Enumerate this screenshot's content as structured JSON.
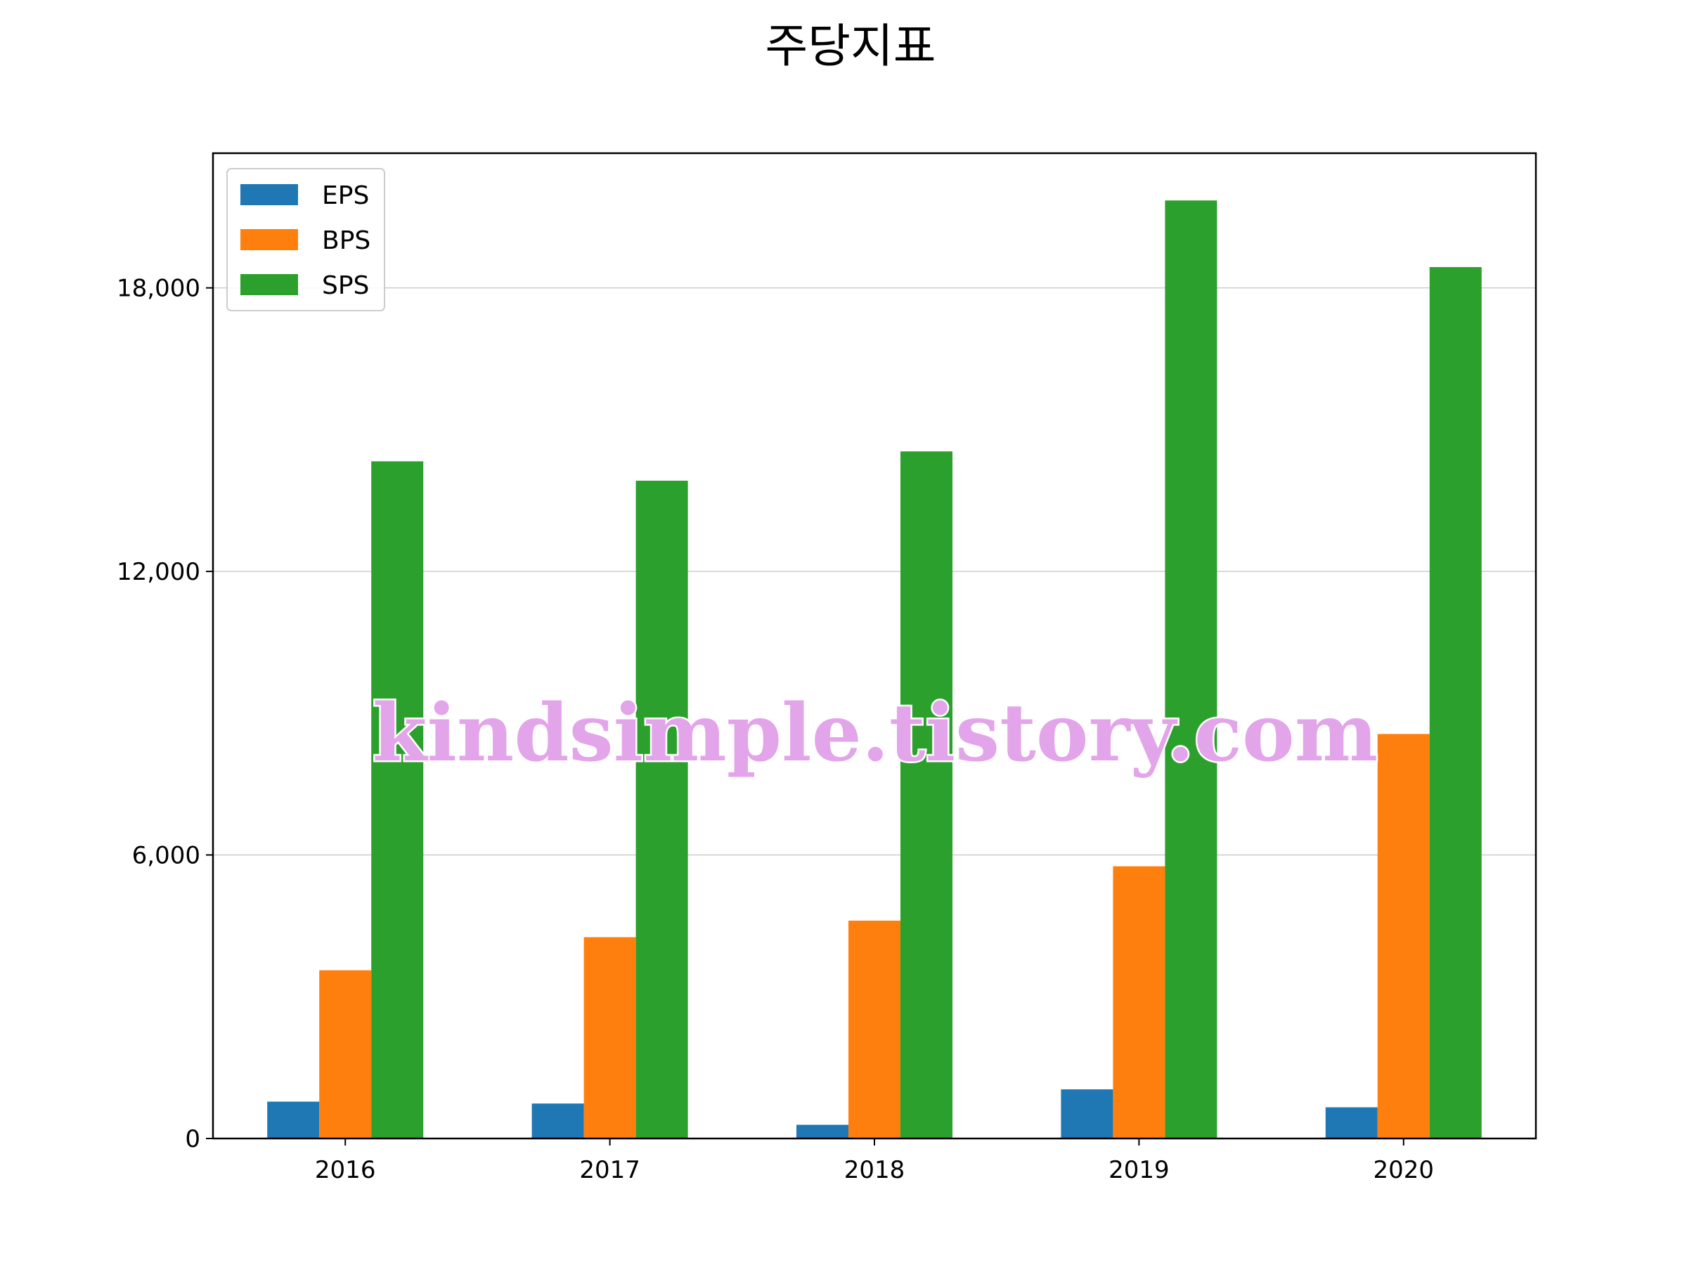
{
  "chart_data": {
    "type": "bar",
    "title": "주당지표",
    "xlabel": "",
    "ylabel": "",
    "categories": [
      "2016",
      "2017",
      "2018",
      "2019",
      "2020"
    ],
    "series": [
      {
        "name": "EPS",
        "color": "#1f77b4",
        "values": [
          780,
          740,
          290,
          1040,
          660
        ]
      },
      {
        "name": "BPS",
        "color": "#ff7f0e",
        "values": [
          3560,
          4260,
          4610,
          5760,
          8560
        ]
      },
      {
        "name": "SPS",
        "color": "#2ca02c",
        "values": [
          14330,
          13920,
          14540,
          19850,
          18440
        ]
      }
    ],
    "ylim": [
      0,
      20850
    ],
    "yticks": [
      0,
      6000,
      12000,
      18000
    ],
    "ytick_labels": [
      "0",
      "6,000",
      "12,000",
      "18,000"
    ],
    "grid": "y",
    "legend_position": "top-left"
  },
  "watermark": "kindsimple.tistory.com"
}
